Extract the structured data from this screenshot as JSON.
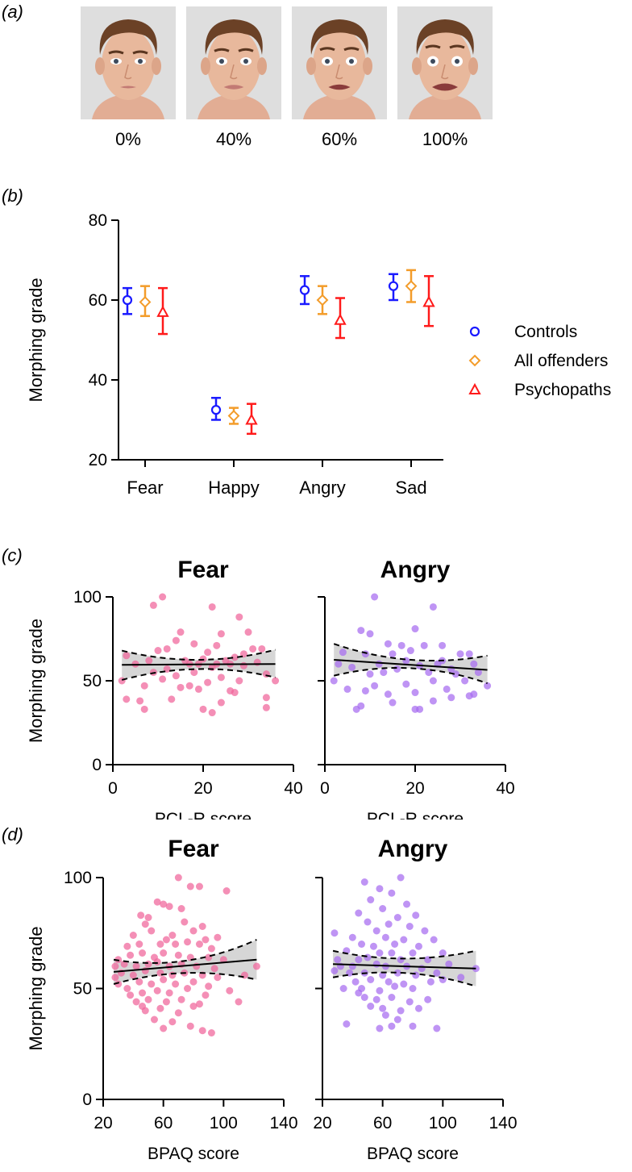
{
  "panels": {
    "a": "(a)",
    "b": "(b)",
    "c": "(c)",
    "d": "(d)"
  },
  "faces": {
    "labels": [
      "0%",
      "40%",
      "60%",
      "100%"
    ],
    "expression_levels": [
      0,
      0.4,
      0.6,
      1.0
    ]
  },
  "colors": {
    "controls": "#1a1aff",
    "offenders": "#f39c2a",
    "psychopaths": "#ff1a1a",
    "fear_points": "#f0649a",
    "angry_points": "#a66bf0",
    "ci_band": "#d6d6d6"
  },
  "chart_data": [
    {
      "id": "b",
      "type": "errorbar",
      "title": "",
      "xlabel": "",
      "ylabel": "Morphing grade",
      "ylim": [
        20,
        80
      ],
      "yticks": [
        20,
        40,
        60,
        80
      ],
      "categories": [
        "Fear",
        "Happy",
        "Angry",
        "Sad"
      ],
      "legend_position": "right",
      "series": [
        {
          "name": "Controls",
          "marker": "circle",
          "color_key": "controls",
          "mean": [
            60,
            32.5,
            62.5,
            63.5
          ],
          "low": [
            56.5,
            30,
            59,
            60
          ],
          "high": [
            63,
            35.5,
            66,
            66.5
          ]
        },
        {
          "name": "All offenders",
          "marker": "diamond",
          "color_key": "offenders",
          "mean": [
            59.5,
            31,
            60,
            63.5
          ],
          "low": [
            56,
            29,
            56.5,
            59.5
          ],
          "high": [
            63.5,
            33,
            63.5,
            67.5
          ]
        },
        {
          "name": "Psychopaths",
          "marker": "triangle",
          "color_key": "psychopaths",
          "mean": [
            57,
            30,
            55,
            59.5
          ],
          "low": [
            51.5,
            26.5,
            50.5,
            53.5
          ],
          "high": [
            63,
            34,
            60.5,
            66
          ]
        }
      ]
    },
    {
      "id": "c-fear",
      "type": "scatter",
      "title": "Fear",
      "xlabel": "PCL-R score",
      "ylabel": "Morphing grade",
      "xlim": [
        0,
        40
      ],
      "ylim": [
        0,
        100
      ],
      "xticks": [
        0,
        20,
        40
      ],
      "yticks": [
        0,
        50,
        100
      ],
      "color_key": "fear_points",
      "fit": {
        "y_at_xmin": 59.5,
        "y_at_xmax": 60,
        "xmin": 2,
        "xmax": 36,
        "ci_upper": [
          68,
          62.5,
          68.5
        ],
        "ci_lower": [
          50.5,
          57,
          52
        ]
      },
      "points": [
        [
          11,
          100
        ],
        [
          9,
          95
        ],
        [
          22,
          94
        ],
        [
          28,
          88
        ],
        [
          15,
          79
        ],
        [
          24,
          78
        ],
        [
          30,
          79
        ],
        [
          14,
          74
        ],
        [
          18,
          72
        ],
        [
          23,
          71
        ],
        [
          10,
          68
        ],
        [
          12,
          69
        ],
        [
          21,
          67
        ],
        [
          31,
          69
        ],
        [
          33,
          69
        ],
        [
          3,
          65
        ],
        [
          8,
          62
        ],
        [
          16,
          62
        ],
        [
          20,
          63
        ],
        [
          25,
          62
        ],
        [
          27,
          64
        ],
        [
          5,
          60
        ],
        [
          17,
          60
        ],
        [
          19,
          60
        ],
        [
          22,
          58
        ],
        [
          26,
          60
        ],
        [
          29,
          59
        ],
        [
          32,
          61
        ],
        [
          2,
          50
        ],
        [
          9,
          55
        ],
        [
          12,
          57
        ],
        [
          14,
          53
        ],
        [
          18,
          55
        ],
        [
          24,
          52
        ],
        [
          34,
          54
        ],
        [
          7,
          47
        ],
        [
          11,
          51
        ],
        [
          21,
          49
        ],
        [
          28,
          50
        ],
        [
          36,
          50
        ],
        [
          15,
          46
        ],
        [
          19,
          45
        ],
        [
          26,
          44
        ],
        [
          6,
          38
        ],
        [
          13,
          39
        ],
        [
          27,
          43
        ],
        [
          3,
          39
        ],
        [
          24,
          37
        ],
        [
          34,
          40
        ],
        [
          7,
          33
        ],
        [
          20,
          33
        ],
        [
          22,
          31
        ],
        [
          34,
          34
        ],
        [
          17,
          47
        ],
        [
          23,
          60
        ],
        [
          29,
          66
        ]
      ]
    },
    {
      "id": "c-angry",
      "type": "scatter",
      "title": "Angry",
      "xlabel": "PCL-R score",
      "ylabel": "",
      "xlim": [
        0,
        40
      ],
      "ylim": [
        0,
        100
      ],
      "xticks": [
        0,
        20,
        40
      ],
      "yticks": [
        0,
        50,
        100
      ],
      "color_key": "angry_points",
      "fit": {
        "y_at_xmin": 62.5,
        "y_at_xmax": 56.5,
        "xmin": 2,
        "xmax": 36,
        "ci_upper": [
          72,
          62.5,
          65
        ],
        "ci_lower": [
          53,
          57.5,
          48.5
        ]
      },
      "points": [
        [
          11,
          100
        ],
        [
          24,
          94
        ],
        [
          8,
          80
        ],
        [
          20,
          81
        ],
        [
          10,
          78
        ],
        [
          14,
          72
        ],
        [
          17,
          71
        ],
        [
          22,
          71
        ],
        [
          26,
          71
        ],
        [
          4,
          67
        ],
        [
          9,
          66
        ],
        [
          15,
          66
        ],
        [
          19,
          68
        ],
        [
          30,
          66
        ],
        [
          32,
          66
        ],
        [
          3,
          60
        ],
        [
          6,
          58
        ],
        [
          12,
          60
        ],
        [
          18,
          62
        ],
        [
          21,
          59
        ],
        [
          25,
          60
        ],
        [
          28,
          57
        ],
        [
          33,
          60
        ],
        [
          13,
          55
        ],
        [
          16,
          57
        ],
        [
          23,
          55
        ],
        [
          29,
          54
        ],
        [
          34,
          55
        ],
        [
          2,
          50
        ],
        [
          5,
          45
        ],
        [
          11,
          47
        ],
        [
          18,
          48
        ],
        [
          24,
          50
        ],
        [
          31,
          50
        ],
        [
          36,
          47
        ],
        [
          9,
          44
        ],
        [
          14,
          42
        ],
        [
          20,
          43
        ],
        [
          27,
          45
        ],
        [
          32,
          41
        ],
        [
          15,
          37
        ],
        [
          24,
          38
        ],
        [
          33,
          42
        ],
        [
          7,
          33
        ],
        [
          8,
          35
        ],
        [
          20,
          33
        ],
        [
          21,
          33
        ],
        [
          28,
          40
        ],
        [
          26,
          62
        ],
        [
          10,
          54
        ]
      ]
    },
    {
      "id": "d-fear",
      "type": "scatter",
      "title": "Fear",
      "xlabel": "BPAQ score",
      "ylabel": "Morphing grade",
      "xlim": [
        20,
        140
      ],
      "ylim": [
        0,
        100
      ],
      "xticks": [
        20,
        60,
        100,
        140
      ],
      "yticks": [
        0,
        50,
        100
      ],
      "color_key": "fear_points",
      "fit": {
        "y_at_xmin": 57.5,
        "y_at_xmax": 63,
        "xmin": 27,
        "xmax": 122,
        "ci_upper": [
          63,
          62.5,
          72
        ],
        "ci_lower": [
          52,
          57,
          54
        ]
      },
      "points": [
        [
          70,
          100
        ],
        [
          78,
          96
        ],
        [
          84,
          96
        ],
        [
          102,
          94
        ],
        [
          56,
          89
        ],
        [
          60,
          88
        ],
        [
          64,
          87
        ],
        [
          72,
          86
        ],
        [
          45,
          83
        ],
        [
          50,
          82
        ],
        [
          48,
          79
        ],
        [
          74,
          80
        ],
        [
          80,
          76
        ],
        [
          86,
          78
        ],
        [
          40,
          74
        ],
        [
          52,
          76
        ],
        [
          66,
          74
        ],
        [
          88,
          72
        ],
        [
          96,
          73
        ],
        [
          36,
          69
        ],
        [
          44,
          70
        ],
        [
          58,
          70
        ],
        [
          62,
          72
        ],
        [
          68,
          70
        ],
        [
          76,
          71
        ],
        [
          84,
          70
        ],
        [
          92,
          68
        ],
        [
          30,
          63
        ],
        [
          38,
          65
        ],
        [
          46,
          66
        ],
        [
          54,
          64
        ],
        [
          60,
          66
        ],
        [
          70,
          65
        ],
        [
          78,
          64
        ],
        [
          90,
          64
        ],
        [
          100,
          63
        ],
        [
          28,
          60
        ],
        [
          34,
          61
        ],
        [
          42,
          60
        ],
        [
          50,
          61
        ],
        [
          56,
          62
        ],
        [
          64,
          60
        ],
        [
          72,
          61
        ],
        [
          82,
          60
        ],
        [
          94,
          59
        ],
        [
          122,
          60
        ],
        [
          32,
          57
        ],
        [
          40,
          56
        ],
        [
          48,
          58
        ],
        [
          58,
          57
        ],
        [
          66,
          56
        ],
        [
          74,
          57
        ],
        [
          86,
          56
        ],
        [
          96,
          55
        ],
        [
          30,
          52
        ],
        [
          44,
          53
        ],
        [
          52,
          52
        ],
        [
          60,
          54
        ],
        [
          68,
          52
        ],
        [
          80,
          53
        ],
        [
          90,
          51
        ],
        [
          36,
          50
        ],
        [
          46,
          48
        ],
        [
          56,
          49
        ],
        [
          64,
          48
        ],
        [
          76,
          50
        ],
        [
          88,
          47
        ],
        [
          104,
          49
        ],
        [
          42,
          44
        ],
        [
          50,
          45
        ],
        [
          62,
          44
        ],
        [
          72,
          45
        ],
        [
          84,
          43
        ],
        [
          110,
          44
        ],
        [
          48,
          40
        ],
        [
          58,
          41
        ],
        [
          70,
          39
        ],
        [
          80,
          42
        ],
        [
          54,
          36
        ],
        [
          66,
          35
        ],
        [
          78,
          33
        ],
        [
          60,
          32
        ],
        [
          86,
          31
        ],
        [
          92,
          30
        ],
        [
          46,
          42
        ],
        [
          38,
          47
        ],
        [
          28,
          55
        ],
        [
          114,
          56
        ]
      ]
    },
    {
      "id": "d-angry",
      "type": "scatter",
      "title": "Angry",
      "xlabel": "BPAQ score",
      "ylabel": "",
      "xlim": [
        20,
        140
      ],
      "ylim": [
        0,
        100
      ],
      "xticks": [
        20,
        60,
        100,
        140
      ],
      "yticks": [
        0,
        50,
        100
      ],
      "color_key": "angry_points",
      "fit": {
        "y_at_xmin": 61,
        "y_at_xmax": 59,
        "xmin": 27,
        "xmax": 122,
        "ci_upper": [
          67,
          63.5,
          67
        ],
        "ci_lower": [
          55,
          57,
          51
        ]
      },
      "points": [
        [
          72,
          100
        ],
        [
          48,
          98
        ],
        [
          58,
          95
        ],
        [
          66,
          93
        ],
        [
          52,
          90
        ],
        [
          76,
          88
        ],
        [
          60,
          86
        ],
        [
          44,
          84
        ],
        [
          70,
          82
        ],
        [
          82,
          83
        ],
        [
          50,
          80
        ],
        [
          64,
          79
        ],
        [
          78,
          78
        ],
        [
          56,
          76
        ],
        [
          88,
          76
        ],
        [
          28,
          75
        ],
        [
          40,
          73
        ],
        [
          62,
          73
        ],
        [
          74,
          72
        ],
        [
          94,
          72
        ],
        [
          46,
          70
        ],
        [
          54,
          69
        ],
        [
          68,
          70
        ],
        [
          84,
          69
        ],
        [
          36,
          67
        ],
        [
          58,
          66
        ],
        [
          66,
          66
        ],
        [
          80,
          66
        ],
        [
          100,
          66
        ],
        [
          30,
          63
        ],
        [
          44,
          63
        ],
        [
          50,
          64
        ],
        [
          72,
          63
        ],
        [
          90,
          63
        ],
        [
          32,
          60
        ],
        [
          40,
          60
        ],
        [
          56,
          61
        ],
        [
          62,
          60
        ],
        [
          76,
          60
        ],
        [
          86,
          59
        ],
        [
          104,
          61
        ],
        [
          122,
          59
        ],
        [
          38,
          57
        ],
        [
          48,
          57
        ],
        [
          60,
          56
        ],
        [
          70,
          57
        ],
        [
          82,
          56
        ],
        [
          96,
          57
        ],
        [
          42,
          53
        ],
        [
          52,
          54
        ],
        [
          64,
          53
        ],
        [
          74,
          52
        ],
        [
          92,
          53
        ],
        [
          112,
          55
        ],
        [
          34,
          50
        ],
        [
          46,
          50
        ],
        [
          58,
          49
        ],
        [
          68,
          51
        ],
        [
          80,
          50
        ],
        [
          48,
          46
        ],
        [
          56,
          45
        ],
        [
          66,
          46
        ],
        [
          78,
          44
        ],
        [
          90,
          45
        ],
        [
          52,
          42
        ],
        [
          60,
          41
        ],
        [
          72,
          40
        ],
        [
          84,
          41
        ],
        [
          62,
          38
        ],
        [
          70,
          36
        ],
        [
          36,
          34
        ],
        [
          66,
          33
        ],
        [
          58,
          32
        ],
        [
          80,
          33
        ],
        [
          96,
          32
        ],
        [
          44,
          48
        ],
        [
          100,
          54
        ],
        [
          28,
          58
        ]
      ]
    }
  ]
}
